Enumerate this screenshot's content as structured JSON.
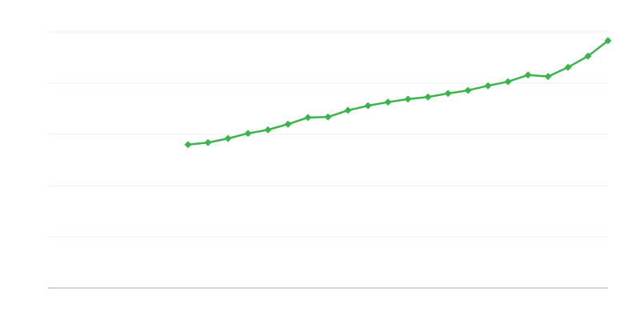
{
  "chart_data": {
    "type": "line",
    "categories": [
      null,
      null,
      null,
      null,
      null,
      null,
      null,
      null,
      null,
      null,
      null,
      null,
      null,
      null,
      null,
      null,
      null,
      null,
      null,
      null,
      null,
      null,
      null,
      null,
      null,
      null,
      null,
      null,
      null
    ],
    "series": [
      {
        "color": "#3cb44b",
        "values": [
          null,
          null,
          null,
          null,
          null,
          null,
          null,
          2.8,
          2.84,
          2.92,
          3.02,
          3.09,
          3.2,
          3.33,
          3.34,
          3.47,
          3.56,
          3.63,
          3.69,
          3.73,
          3.8,
          3.86,
          3.95,
          4.03,
          4.16,
          4.13,
          4.31,
          4.53,
          4.83
        ]
      }
    ],
    "ylim": [
      0,
      5
    ],
    "yticks": [
      0,
      1,
      2,
      3,
      4,
      5
    ],
    "grid": true
  }
}
